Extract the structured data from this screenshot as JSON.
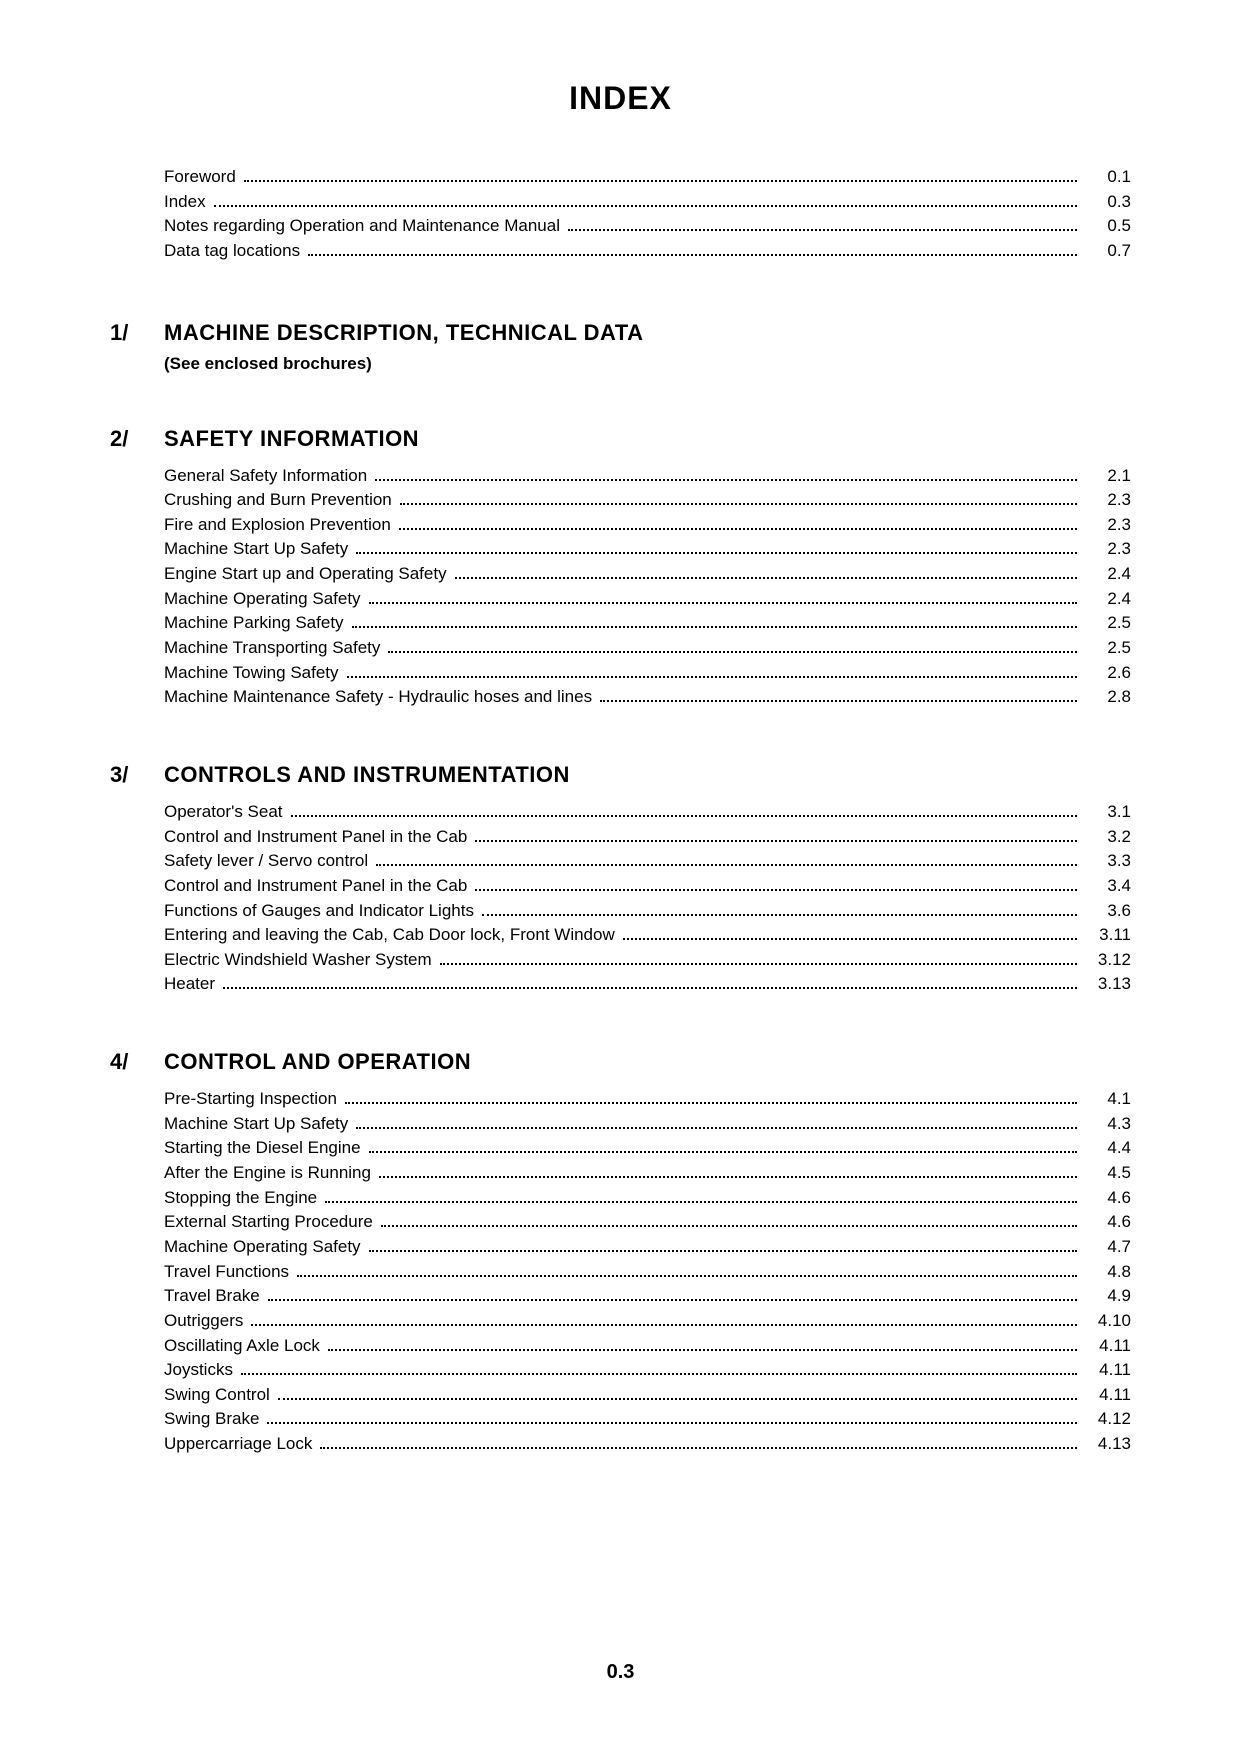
{
  "title": "INDEX",
  "page_number": "0.3",
  "typography": {
    "title_fontsize": 32,
    "section_title_fontsize": 22,
    "entry_fontsize": 17,
    "page_number_fontsize": 20,
    "font_family": "Arial, Helvetica, sans-serif",
    "text_color": "#000000",
    "background_color": "#ffffff"
  },
  "preamble": [
    {
      "label": "Foreword",
      "page": "0.1"
    },
    {
      "label": "Index",
      "page": "0.3"
    },
    {
      "label": "Notes regarding Operation and Maintenance Manual",
      "page": "0.5"
    },
    {
      "label": "Data tag locations",
      "page": "0.7"
    }
  ],
  "sections": [
    {
      "number": "1/",
      "title": "MACHINE DESCRIPTION, TECHNICAL DATA",
      "subtitle": "(See enclosed brochures)",
      "entries": []
    },
    {
      "number": "2/",
      "title": "SAFETY INFORMATION",
      "entries": [
        {
          "label": "General Safety Information",
          "page": "2.1"
        },
        {
          "label": "Crushing and Burn Prevention",
          "page": "2.3"
        },
        {
          "label": "Fire and Explosion Prevention",
          "page": "2.3"
        },
        {
          "label": "Machine Start Up Safety",
          "page": "2.3"
        },
        {
          "label": "Engine Start up and Operating Safety",
          "page": "2.4"
        },
        {
          "label": "Machine Operating Safety",
          "page": "2.4"
        },
        {
          "label": "Machine Parking Safety",
          "page": "2.5"
        },
        {
          "label": "Machine Transporting Safety",
          "page": "2.5"
        },
        {
          "label": "Machine Towing Safety",
          "page": "2.6"
        },
        {
          "label": "Machine Maintenance Safety - Hydraulic hoses and lines",
          "page": "2.8"
        }
      ]
    },
    {
      "number": "3/",
      "title": "CONTROLS AND INSTRUMENTATION",
      "entries": [
        {
          "label": "Operator's Seat",
          "page": "3.1"
        },
        {
          "label": "Control and Instrument Panel in the Cab",
          "page": "3.2"
        },
        {
          "label": "Safety lever / Servo control",
          "page": "3.3"
        },
        {
          "label": "Control and Instrument Panel in the Cab",
          "page": "3.4"
        },
        {
          "label": "Functions of Gauges and Indicator Lights",
          "page": "3.6"
        },
        {
          "label": "Entering and leaving the Cab, Cab Door lock, Front Window",
          "page": "3.11"
        },
        {
          "label": "Electric Windshield Washer System",
          "page": "3.12"
        },
        {
          "label": "Heater",
          "page": "3.13"
        }
      ]
    },
    {
      "number": "4/",
      "title": "CONTROL AND OPERATION",
      "entries": [
        {
          "label": "Pre-Starting Inspection",
          "page": "4.1"
        },
        {
          "label": "Machine Start Up Safety",
          "page": "4.3"
        },
        {
          "label": "Starting the Diesel Engine",
          "page": "4.4"
        },
        {
          "label": "After the Engine is Running",
          "page": "4.5"
        },
        {
          "label": "Stopping the Engine",
          "page": "4.6"
        },
        {
          "label": "External Starting Procedure",
          "page": "4.6"
        },
        {
          "label": "Machine Operating Safety",
          "page": "4.7"
        },
        {
          "label": "Travel Functions",
          "page": "4.8"
        },
        {
          "label": "Travel Brake",
          "page": "4.9"
        },
        {
          "label": "Outriggers",
          "page": "4.10"
        },
        {
          "label": "Oscillating Axle Lock",
          "page": "4.11"
        },
        {
          "label": "Joysticks",
          "page": "4.11"
        },
        {
          "label": "Swing Control",
          "page": "4.11"
        },
        {
          "label": "Swing Brake",
          "page": "4.12"
        },
        {
          "label": "Uppercarriage Lock",
          "page": "4.13"
        }
      ]
    }
  ]
}
